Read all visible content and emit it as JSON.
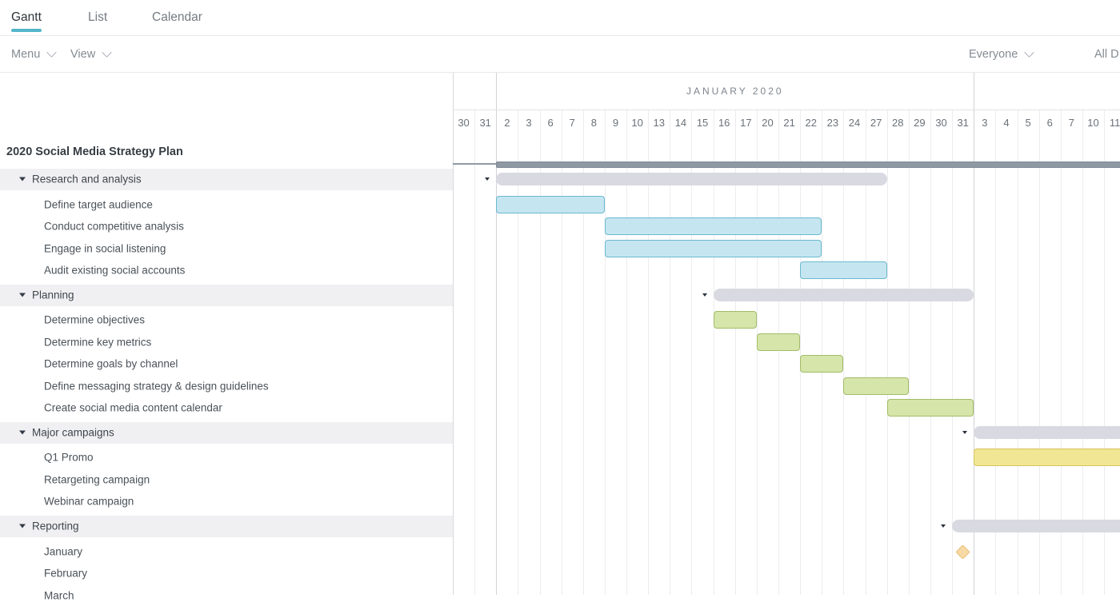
{
  "tabs": [
    {
      "label": "Gantt",
      "active": true
    },
    {
      "label": "List",
      "active": false
    },
    {
      "label": "Calendar",
      "active": false
    }
  ],
  "toolbar": {
    "menu_label": "Menu",
    "view_label": "View",
    "people_filter": "Everyone",
    "date_filter": "All D"
  },
  "timeline": {
    "month_label": "JANUARY 2020",
    "day_columns": [
      "30",
      "31",
      "2",
      "3",
      "6",
      "7",
      "8",
      "9",
      "10",
      "13",
      "14",
      "15",
      "16",
      "17",
      "20",
      "21",
      "22",
      "23",
      "24",
      "27",
      "28",
      "29",
      "30",
      "31",
      "3",
      "4",
      "5",
      "6",
      "7",
      "10",
      "11"
    ],
    "month_start_boundaries": [
      2,
      24
    ]
  },
  "colors": {
    "accent_teal": "#53b6c8",
    "project_bar_fill": "#8f99a4",
    "project_bar_border": "#7e8a96",
    "group_bar_fill": "#d9d9e2",
    "group_row_bg": "#f0f0f2",
    "task_blue_fill": "#c5e6f0",
    "task_blue_border": "#6ab9cf",
    "task_green_fill": "#d6e5aa",
    "task_green_border": "#a2bc69",
    "task_yellow_fill": "#f1e693",
    "task_yellow_border": "#d5c55e",
    "milestone_fill": "#f7d9a4",
    "milestone_border": "#e9bc77"
  },
  "rows": [
    {
      "kind": "project",
      "label": "2020 Social Media Strategy Plan",
      "bar": {
        "type": "project",
        "start": 2,
        "open_end": true
      }
    },
    {
      "kind": "group",
      "label": "Research and analysis",
      "bar": {
        "type": "group",
        "start": 2,
        "end": 19
      }
    },
    {
      "kind": "task",
      "label": "Define target audience",
      "bar": {
        "type": "task",
        "palette": "blue",
        "start": 2,
        "end": 6
      }
    },
    {
      "kind": "task",
      "label": "Conduct competitive analysis",
      "bar": {
        "type": "task",
        "palette": "blue",
        "start": 7,
        "end": 16
      }
    },
    {
      "kind": "task",
      "label": "Engage in social listening",
      "bar": {
        "type": "task",
        "palette": "blue",
        "start": 7,
        "end": 16
      }
    },
    {
      "kind": "task",
      "label": "Audit existing social accounts",
      "bar": {
        "type": "task",
        "palette": "blue",
        "start": 16,
        "end": 19
      }
    },
    {
      "kind": "group",
      "label": "Planning",
      "bar": {
        "type": "group",
        "start": 12,
        "end": 23
      }
    },
    {
      "kind": "task",
      "label": "Determine objectives",
      "bar": {
        "type": "task",
        "palette": "green",
        "start": 12,
        "end": 13
      }
    },
    {
      "kind": "task",
      "label": "Determine key metrics",
      "bar": {
        "type": "task",
        "palette": "green",
        "start": 14,
        "end": 15
      }
    },
    {
      "kind": "task",
      "label": "Determine goals by channel",
      "bar": {
        "type": "task",
        "palette": "green",
        "start": 16,
        "end": 17
      }
    },
    {
      "kind": "task",
      "label": "Define messaging strategy & design guidelines",
      "bar": {
        "type": "task",
        "palette": "green",
        "start": 18,
        "end": 20
      }
    },
    {
      "kind": "task",
      "label": "Create social media content calendar",
      "bar": {
        "type": "task",
        "palette": "green",
        "start": 20,
        "end": 23
      }
    },
    {
      "kind": "group",
      "label": "Major campaigns",
      "bar": {
        "type": "group",
        "start": 24,
        "open_end": true
      }
    },
    {
      "kind": "task",
      "label": "Q1 Promo",
      "bar": {
        "type": "task",
        "palette": "yellow",
        "start": 24,
        "open_end": true
      }
    },
    {
      "kind": "task",
      "label": "Retargeting campaign",
      "bar": null
    },
    {
      "kind": "task",
      "label": "Webinar campaign",
      "bar": null
    },
    {
      "kind": "group",
      "label": "Reporting",
      "bar": {
        "type": "group",
        "start": 23,
        "open_end": true
      }
    },
    {
      "kind": "task",
      "label": "January",
      "bar": {
        "type": "milestone",
        "col": 23
      }
    },
    {
      "kind": "task",
      "label": "February",
      "bar": null
    },
    {
      "kind": "task",
      "label": "March",
      "bar": null
    }
  ]
}
